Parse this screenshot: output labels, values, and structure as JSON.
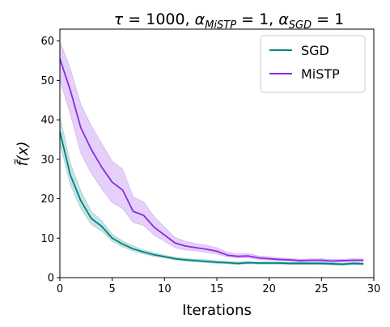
{
  "chart_data": {
    "type": "line",
    "title": "τ = 1000, α_MiSTP = 1, α_SGD = 1",
    "title_parts": {
      "tau": "τ",
      "tau_value": " = 1000, ",
      "alpha1": "α",
      "alpha1_sub": "MiSTP",
      "alpha1_value": " = 1, ",
      "alpha2": "α",
      "alpha2_sub": "SGD",
      "alpha2_value": " = 1"
    },
    "xlabel": "Iterations",
    "ylabel": "f̃(x)",
    "xlim": [
      0,
      30
    ],
    "ylim": [
      0,
      63
    ],
    "xticks": [
      0,
      5,
      10,
      15,
      20,
      25,
      30
    ],
    "yticks": [
      0,
      10,
      20,
      30,
      40,
      50,
      60
    ],
    "grid": false,
    "legend_position": "top-right",
    "x": [
      0,
      1,
      2,
      3,
      4,
      5,
      6,
      7,
      8,
      9,
      10,
      11,
      12,
      13,
      14,
      15,
      16,
      17,
      18,
      19,
      20,
      21,
      22,
      23,
      24,
      25,
      26,
      27,
      28,
      29
    ],
    "series": [
      {
        "name": "SGD",
        "color": "#008080",
        "values": [
          37,
          26,
          19.5,
          15,
          13,
          10,
          8.5,
          7.3,
          6.5,
          5.8,
          5.3,
          4.8,
          4.5,
          4.3,
          4.1,
          3.9,
          3.8,
          3.6,
          3.8,
          3.7,
          3.7,
          3.7,
          3.6,
          3.6,
          3.6,
          3.6,
          3.5,
          3.4,
          3.6,
          3.5
        ],
        "lower": [
          34,
          23.5,
          17.5,
          13.5,
          11.8,
          9.2,
          7.8,
          6.8,
          6.0,
          5.4,
          5.0,
          4.5,
          4.2,
          4.0,
          3.8,
          3.6,
          3.5,
          3.3,
          3.5,
          3.4,
          3.4,
          3.4,
          3.3,
          3.3,
          3.3,
          3.3,
          3.2,
          3.1,
          3.3,
          3.2
        ],
        "upper": [
          41,
          29,
          22,
          16.8,
          14.5,
          11,
          9.3,
          8.0,
          7.0,
          6.3,
          5.7,
          5.2,
          4.9,
          4.7,
          4.5,
          4.3,
          4.1,
          4.0,
          4.1,
          4.0,
          4.0,
          4.0,
          3.9,
          3.9,
          3.9,
          3.9,
          3.8,
          3.7,
          3.9,
          3.8
        ]
      },
      {
        "name": "MiSTP",
        "color": "#8A2BE2",
        "values": [
          55.5,
          47.5,
          38,
          32.5,
          28,
          24.2,
          22.2,
          16.8,
          15.8,
          12.8,
          10.8,
          8.8,
          8.0,
          7.6,
          7.2,
          6.7,
          5.7,
          5.4,
          5.5,
          5.0,
          4.8,
          4.6,
          4.5,
          4.3,
          4.4,
          4.4,
          4.2,
          4.3,
          4.4,
          4.4
        ],
        "lower": [
          50,
          41.5,
          31.5,
          26.5,
          22.5,
          19,
          17.5,
          14,
          13.2,
          10.8,
          9.2,
          7.6,
          7.0,
          6.8,
          6.4,
          6.0,
          5.2,
          5.0,
          5.0,
          4.6,
          4.4,
          4.3,
          4.2,
          4.0,
          4.1,
          4.1,
          3.9,
          4.0,
          4.1,
          4.1
        ],
        "upper": [
          60,
          53,
          44,
          38.5,
          34,
          29.5,
          27.5,
          20.5,
          19.2,
          15.5,
          12.8,
          10.2,
          9.2,
          8.6,
          8.2,
          7.6,
          6.4,
          6.0,
          6.1,
          5.5,
          5.3,
          5.0,
          4.9,
          4.7,
          4.8,
          4.8,
          4.6,
          4.7,
          4.8,
          4.8
        ]
      }
    ]
  }
}
